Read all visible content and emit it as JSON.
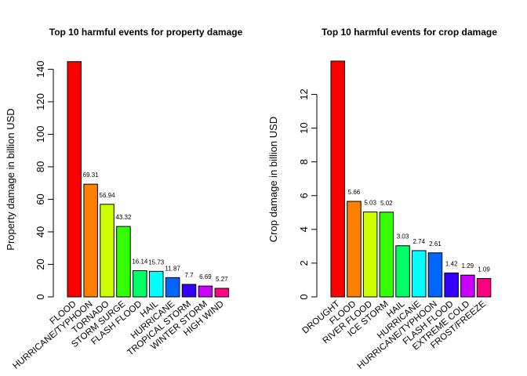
{
  "chart_data": [
    {
      "type": "bar",
      "title": "Top 10 harmful events for property damage",
      "xlabel": "",
      "ylabel": "Property damage in billion USD",
      "ylim": [
        0,
        145
      ],
      "yticks": [
        0,
        20,
        40,
        60,
        80,
        100,
        120,
        140
      ],
      "grid": false,
      "categories": [
        "FLOOD",
        "HURRICANE/TYPHOON",
        "TORNADO",
        "STORM SURGE",
        "FLASH FLOOD",
        "HAIL",
        "HURRICANE",
        "TROPICAL STORM",
        "WINTER STORM",
        "HIGH WIND"
      ],
      "values": [
        144.66,
        69.31,
        56.94,
        43.32,
        16.14,
        15.73,
        11.87,
        7.7,
        6.69,
        5.27
      ],
      "data_labels": [
        "",
        "69.31",
        "56.94",
        "43.32",
        "16.14",
        "15.73",
        "11.87",
        "7.7",
        "6.69",
        "5.27"
      ],
      "colors": [
        "#FF0000",
        "#FF8000",
        "#CCFF00",
        "#33FF00",
        "#00FF66",
        "#00FFFF",
        "#0066FF",
        "#3300FF",
        "#CC00FF",
        "#FF0080"
      ]
    },
    {
      "type": "bar",
      "title": "Top 10 harmful events for crop damage",
      "xlabel": "",
      "ylabel": "Crop damage in billion USD",
      "ylim": [
        0,
        13.97
      ],
      "yticks": [
        0,
        2,
        4,
        6,
        8,
        10,
        12
      ],
      "grid": false,
      "categories": [
        "DROUGHT",
        "FLOOD",
        "RIVER FLOOD",
        "ICE STORM",
        "HAIL",
        "HURRICANE",
        "HURRICANE/TYPHOON",
        "FLASH FLOOD",
        "EXTREME COLD",
        "FROST/FREEZE"
      ],
      "values": [
        13.97,
        5.66,
        5.03,
        5.02,
        3.03,
        2.74,
        2.61,
        1.42,
        1.29,
        1.09
      ],
      "data_labels": [
        "",
        "5.66",
        "5.03",
        "5.02",
        "3.03",
        "2.74",
        "2.61",
        "1.42",
        "1.29",
        "1.09"
      ],
      "colors": [
        "#FF0000",
        "#FF8000",
        "#CCFF00",
        "#33FF00",
        "#00FF66",
        "#00FFFF",
        "#0066FF",
        "#3300FF",
        "#CC00FF",
        "#FF0080"
      ]
    }
  ]
}
